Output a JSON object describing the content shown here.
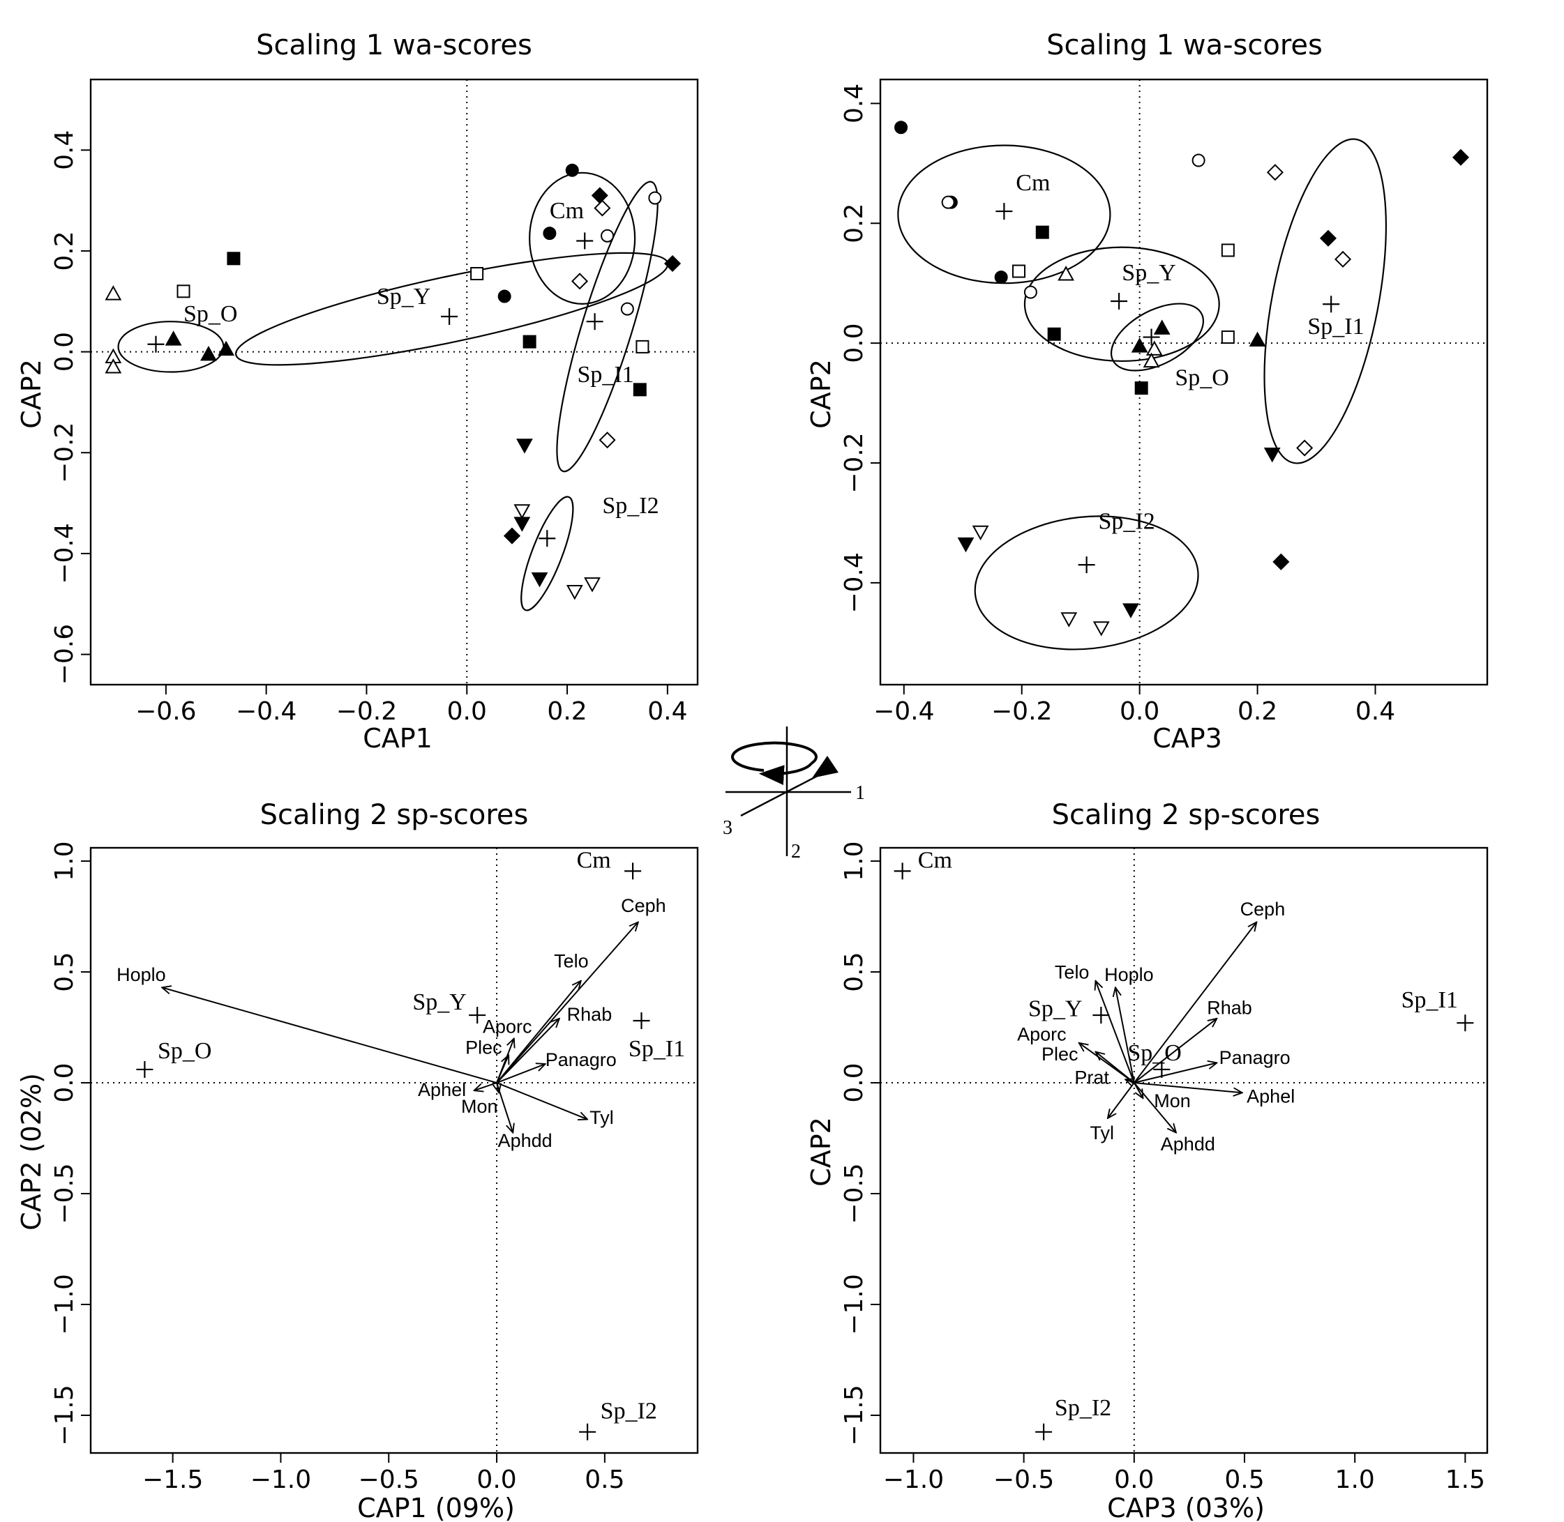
{
  "panels": [
    {
      "title": "Scaling 1 wa-scores",
      "xlabel": "CAP1",
      "ylabel": "CAP2",
      "xlim": [
        -0.75,
        0.46
      ],
      "ylim": [
        -0.66,
        0.54
      ],
      "xticks": [
        -0.6,
        -0.4,
        -0.2,
        0.0,
        0.2,
        0.4
      ],
      "xticklabels": [
        "−0.6",
        "−0.4",
        "−0.2",
        "0.0",
        "0.2",
        "0.4"
      ],
      "yticks": [
        -0.6,
        -0.4,
        -0.2,
        0.0,
        0.2,
        0.4
      ],
      "yticklabels": [
        "−0.6",
        "−0.4",
        "−0.2",
        "0.0",
        "0.2",
        "0.4"
      ]
    },
    {
      "title": "Scaling 1 wa-scores",
      "xlabel": "CAP3",
      "ylabel": "CAP2",
      "xlim": [
        -0.44,
        0.59
      ],
      "ylim": [
        -0.57,
        0.44
      ],
      "xticks": [
        -0.4,
        -0.2,
        0.0,
        0.2,
        0.4
      ],
      "xticklabels": [
        "−0.4",
        "−0.2",
        "0.0",
        "0.2",
        "0.4"
      ],
      "yticks": [
        -0.4,
        -0.2,
        0.0,
        0.2,
        0.4
      ],
      "yticklabels": [
        "−0.4",
        "−0.2",
        "0.0",
        "0.2",
        "0.4"
      ]
    },
    {
      "title": "Scaling 2 sp-scores",
      "xlabel": "CAP1 (09%)",
      "ylabel": "CAP2 (02%)",
      "xlim": [
        -1.88,
        0.93
      ],
      "ylim": [
        -1.67,
        1.06
      ],
      "xticks": [
        -1.5,
        -1.0,
        -0.5,
        0.0,
        0.5
      ],
      "xticklabels": [
        "−1.5",
        "−1.0",
        "−0.5",
        "0.0",
        "0.5"
      ],
      "yticks": [
        -1.5,
        -1.0,
        -0.5,
        0.0,
        0.5,
        1.0
      ],
      "yticklabels": [
        "−1.5",
        "−1.0",
        "−0.5",
        "0.0",
        "0.5",
        "1.0"
      ]
    },
    {
      "title": "Scaling 2 sp-scores",
      "xlabel": "CAP3 (03%)",
      "ylabel": "CAP2",
      "xlim": [
        -1.15,
        1.6
      ],
      "ylim": [
        -1.67,
        1.06
      ],
      "xticks": [
        -1.0,
        -0.5,
        0.0,
        0.5,
        1.0,
        1.5
      ],
      "xticklabels": [
        "−1.0",
        "−0.5",
        "0.0",
        "0.5",
        "1.0",
        "1.5"
      ],
      "yticks": [
        -1.5,
        -1.0,
        -0.5,
        0.0,
        0.5,
        1.0
      ],
      "yticklabels": [
        "−1.5",
        "−1.0",
        "−0.5",
        "0.0",
        "0.5",
        "1.0"
      ]
    }
  ],
  "rotation_icon": {
    "labels": [
      "1",
      "2",
      "3"
    ]
  },
  "chart_data": [
    {
      "type": "scatter",
      "title": "Scaling 1 wa-scores",
      "xlabel": "CAP1",
      "ylabel": "CAP2",
      "xlim": [
        -0.75,
        0.46
      ],
      "ylim": [
        -0.66,
        0.54
      ],
      "grid": false,
      "points": [
        {
          "s": "circle-filled",
          "x": 0.21,
          "y": 0.36
        },
        {
          "s": "circle-filled",
          "x": 0.165,
          "y": 0.235
        },
        {
          "s": "circle-filled",
          "x": 0.075,
          "y": 0.11
        },
        {
          "s": "circle-open",
          "x": 0.375,
          "y": 0.305
        },
        {
          "s": "circle-open",
          "x": 0.28,
          "y": 0.23
        },
        {
          "s": "circle-open",
          "x": 0.32,
          "y": 0.085
        },
        {
          "s": "diamond-filled",
          "x": 0.265,
          "y": 0.31
        },
        {
          "s": "diamond-filled",
          "x": 0.41,
          "y": 0.175
        },
        {
          "s": "diamond-filled",
          "x": 0.09,
          "y": -0.365
        },
        {
          "s": "diamond-open",
          "x": 0.27,
          "y": 0.285
        },
        {
          "s": "diamond-open",
          "x": 0.225,
          "y": 0.14
        },
        {
          "s": "diamond-open",
          "x": 0.28,
          "y": -0.175
        },
        {
          "s": "square-filled",
          "x": -0.465,
          "y": 0.185
        },
        {
          "s": "square-filled",
          "x": 0.125,
          "y": 0.02
        },
        {
          "s": "square-filled",
          "x": 0.345,
          "y": -0.075
        },
        {
          "s": "square-open",
          "x": -0.565,
          "y": 0.12
        },
        {
          "s": "square-open",
          "x": 0.02,
          "y": 0.155
        },
        {
          "s": "square-open",
          "x": 0.35,
          "y": 0.01
        },
        {
          "s": "triangle-up-open",
          "x": -0.705,
          "y": 0.115
        },
        {
          "s": "triangle-up-open",
          "x": -0.705,
          "y": -0.01
        },
        {
          "s": "triangle-up-open",
          "x": -0.705,
          "y": -0.03
        },
        {
          "s": "triangle-up-filled",
          "x": -0.585,
          "y": 0.025
        },
        {
          "s": "triangle-up-filled",
          "x": -0.515,
          "y": -0.005
        },
        {
          "s": "triangle-up-filled",
          "x": -0.48,
          "y": 0.005
        },
        {
          "s": "triangle-down-filled",
          "x": 0.115,
          "y": -0.185
        },
        {
          "s": "triangle-down-filled",
          "x": 0.11,
          "y": -0.34
        },
        {
          "s": "triangle-down-filled",
          "x": 0.145,
          "y": -0.45
        },
        {
          "s": "triangle-down-open",
          "x": 0.11,
          "y": -0.315
        },
        {
          "s": "triangle-down-open",
          "x": 0.215,
          "y": -0.475
        },
        {
          "s": "triangle-down-open",
          "x": 0.25,
          "y": -0.46
        }
      ],
      "groups": [
        {
          "label": "Cm",
          "cx": 0.235,
          "cy": 0.22,
          "lx": 0.165,
          "ly": 0.265,
          "ell": {
            "cx": 0.23,
            "cy": 0.225,
            "rx": 0.105,
            "ry": 0.13,
            "angle": 0
          }
        },
        {
          "label": "Sp_Y",
          "cx": -0.035,
          "cy": 0.07,
          "lx": -0.18,
          "ly": 0.095,
          "ell": {
            "cx": -0.03,
            "cy": 0.085,
            "rx": 0.44,
            "ry": 0.065,
            "angle": -12
          }
        },
        {
          "label": "Sp_O",
          "cx": -0.62,
          "cy": 0.015,
          "lx": -0.565,
          "ly": 0.06,
          "ell": {
            "cx": -0.59,
            "cy": 0.01,
            "rx": 0.105,
            "ry": 0.05,
            "angle": 0
          }
        },
        {
          "label": "Sp_I1",
          "cx": 0.255,
          "cy": 0.06,
          "lx": 0.22,
          "ly": -0.06,
          "ell": {
            "cx": 0.28,
            "cy": 0.05,
            "rx": 0.05,
            "ry": 0.3,
            "angle": 17
          }
        },
        {
          "label": "Sp_I2",
          "cx": 0.16,
          "cy": -0.37,
          "lx": 0.27,
          "ly": -0.32,
          "ell": {
            "cx": 0.16,
            "cy": -0.4,
            "rx": 0.03,
            "ry": 0.12,
            "angle": 21
          }
        }
      ]
    },
    {
      "type": "scatter",
      "title": "Scaling 1 wa-scores",
      "xlabel": "CAP3",
      "ylabel": "CAP2",
      "xlim": [
        -0.44,
        0.59
      ],
      "ylim": [
        -0.57,
        0.44
      ],
      "grid": false,
      "points": [
        {
          "s": "circle-filled",
          "x": -0.405,
          "y": 0.36
        },
        {
          "s": "circle-filled",
          "x": -0.32,
          "y": 0.235
        },
        {
          "s": "circle-filled",
          "x": -0.235,
          "y": 0.11
        },
        {
          "s": "circle-open",
          "x": -0.325,
          "y": 0.235
        },
        {
          "s": "circle-open",
          "x": -0.185,
          "y": 0.085
        },
        {
          "s": "circle-open",
          "x": 0.1,
          "y": 0.305
        },
        {
          "s": "diamond-filled",
          "x": 0.545,
          "y": 0.31
        },
        {
          "s": "diamond-filled",
          "x": 0.32,
          "y": 0.175
        },
        {
          "s": "diamond-filled",
          "x": 0.24,
          "y": -0.365
        },
        {
          "s": "diamond-open",
          "x": 0.23,
          "y": 0.285
        },
        {
          "s": "diamond-open",
          "x": 0.345,
          "y": 0.14
        },
        {
          "s": "diamond-open",
          "x": 0.28,
          "y": -0.175
        },
        {
          "s": "square-filled",
          "x": -0.165,
          "y": 0.185
        },
        {
          "s": "square-filled",
          "x": -0.145,
          "y": 0.015
        },
        {
          "s": "square-filled",
          "x": 0.003,
          "y": -0.075
        },
        {
          "s": "square-open",
          "x": -0.205,
          "y": 0.12
        },
        {
          "s": "square-open",
          "x": 0.15,
          "y": 0.155
        },
        {
          "s": "square-open",
          "x": 0.15,
          "y": 0.01
        },
        {
          "s": "triangle-up-open",
          "x": -0.125,
          "y": 0.115
        },
        {
          "s": "triangle-up-open",
          "x": 0.025,
          "y": -0.01
        },
        {
          "s": "triangle-up-open",
          "x": 0.02,
          "y": -0.03
        },
        {
          "s": "triangle-up-filled",
          "x": 0.038,
          "y": 0.025
        },
        {
          "s": "triangle-up-filled",
          "x": 0.0,
          "y": -0.005
        },
        {
          "s": "triangle-up-filled",
          "x": 0.2,
          "y": 0.005
        },
        {
          "s": "triangle-down-filled",
          "x": 0.225,
          "y": -0.185
        },
        {
          "s": "triangle-down-filled",
          "x": -0.295,
          "y": -0.335
        },
        {
          "s": "triangle-down-filled",
          "x": -0.015,
          "y": -0.445
        },
        {
          "s": "triangle-down-open",
          "x": -0.27,
          "y": -0.315
        },
        {
          "s": "triangle-down-open",
          "x": -0.12,
          "y": -0.46
        },
        {
          "s": "triangle-down-open",
          "x": -0.065,
          "y": -0.475
        }
      ],
      "groups": [
        {
          "label": "Cm",
          "cx": -0.23,
          "cy": 0.22,
          "lx": -0.21,
          "ly": 0.255,
          "ell": {
            "cx": -0.23,
            "cy": 0.215,
            "rx": 0.18,
            "ry": 0.115,
            "angle": 0
          }
        },
        {
          "label": "Sp_Y",
          "cx": -0.035,
          "cy": 0.07,
          "lx": -0.03,
          "ly": 0.105,
          "ell": {
            "cx": -0.03,
            "cy": 0.065,
            "rx": 0.165,
            "ry": 0.095,
            "angle": 0
          }
        },
        {
          "label": "Sp_O",
          "cx": 0.02,
          "cy": 0.01,
          "lx": 0.06,
          "ly": -0.07,
          "ell": {
            "cx": 0.03,
            "cy": 0.01,
            "rx": 0.085,
            "ry": 0.045,
            "angle": -28
          }
        },
        {
          "label": "Sp_I1",
          "cx": 0.325,
          "cy": 0.065,
          "lx": 0.285,
          "ly": 0.015,
          "ell": {
            "cx": 0.315,
            "cy": 0.07,
            "rx": 0.09,
            "ry": 0.275,
            "angle": 11
          }
        },
        {
          "label": "Sp_I2",
          "cx": -0.09,
          "cy": -0.37,
          "lx": -0.07,
          "ly": -0.31,
          "ell": {
            "cx": -0.09,
            "cy": -0.4,
            "rx": 0.19,
            "ry": 0.11,
            "angle": -6
          }
        }
      ]
    },
    {
      "type": "biplot",
      "title": "Scaling 2 sp-scores",
      "xlabel": "CAP1 (09%)",
      "ylabel": "CAP2 (02%)",
      "xlim": [
        -1.88,
        0.93
      ],
      "ylim": [
        -1.67,
        1.06
      ],
      "grid": false,
      "centroids": [
        {
          "label": "Cm",
          "x": 0.63,
          "y": 0.955,
          "lx": 0.37,
          "ly": 0.97
        },
        {
          "label": "Sp_Y",
          "x": -0.09,
          "y": 0.305,
          "lx": -0.39,
          "ly": 0.33
        },
        {
          "label": "Sp_O",
          "x": -1.63,
          "y": 0.06,
          "lx": -1.57,
          "ly": 0.11
        },
        {
          "label": "Sp_I1",
          "x": 0.67,
          "y": 0.28,
          "lx": 0.61,
          "ly": 0.12
        },
        {
          "label": "Sp_I2",
          "x": 0.42,
          "y": -1.575,
          "lx": 0.48,
          "ly": -1.515
        }
      ],
      "species": [
        {
          "name": "Ceph",
          "x": 0.655,
          "y": 0.725,
          "lx": 0.575,
          "ly": 0.77
        },
        {
          "name": "Telo",
          "x": 0.39,
          "y": 0.46,
          "lx": 0.265,
          "ly": 0.52
        },
        {
          "name": "Rhab",
          "x": 0.29,
          "y": 0.29,
          "lx": 0.325,
          "ly": 0.28
        },
        {
          "name": "Hoplo",
          "x": -1.55,
          "y": 0.43,
          "lx": -1.76,
          "ly": 0.46
        },
        {
          "name": "Aporc",
          "x": 0.08,
          "y": 0.2,
          "lx": -0.065,
          "ly": 0.225
        },
        {
          "name": "Plec",
          "x": 0.055,
          "y": 0.125,
          "lx": -0.145,
          "ly": 0.13
        },
        {
          "name": "Panagro",
          "x": 0.225,
          "y": 0.085,
          "lx": 0.225,
          "ly": 0.075
        },
        {
          "name": "Aphel",
          "x": -0.105,
          "y": -0.035,
          "lx": -0.365,
          "ly": -0.06
        },
        {
          "name": "Mon",
          "x": 0.01,
          "y": -0.045,
          "lx": -0.165,
          "ly": -0.135
        },
        {
          "name": "Aphdd",
          "x": 0.075,
          "y": -0.225,
          "lx": 0.005,
          "ly": -0.29
        },
        {
          "name": "Tyl",
          "x": 0.42,
          "y": -0.165,
          "lx": 0.43,
          "ly": -0.185
        }
      ]
    },
    {
      "type": "biplot",
      "title": "Scaling 2 sp-scores",
      "xlabel": "CAP3 (03%)",
      "ylabel": "CAP2",
      "xlim": [
        -1.15,
        1.6
      ],
      "ylim": [
        -1.67,
        1.06
      ],
      "grid": false,
      "centroids": [
        {
          "label": "Cm",
          "x": -1.05,
          "y": 0.955,
          "lx": -0.98,
          "ly": 0.97
        },
        {
          "label": "Sp_Y",
          "x": -0.15,
          "y": 0.305,
          "lx": -0.48,
          "ly": 0.3
        },
        {
          "label": "Sp_O",
          "x": 0.125,
          "y": 0.06,
          "lx": -0.03,
          "ly": 0.1
        },
        {
          "label": "Sp_I1",
          "x": 1.5,
          "y": 0.27,
          "lx": 1.21,
          "ly": 0.34
        },
        {
          "label": "Sp_I2",
          "x": -0.41,
          "y": -1.575,
          "lx": -0.36,
          "ly": -1.5
        }
      ],
      "species": [
        {
          "name": "Ceph",
          "x": 0.555,
          "y": 0.725,
          "lx": 0.48,
          "ly": 0.755
        },
        {
          "name": "Telo",
          "x": -0.175,
          "y": 0.46,
          "lx": -0.36,
          "ly": 0.47
        },
        {
          "name": "Hoplo",
          "x": -0.085,
          "y": 0.43,
          "lx": -0.135,
          "ly": 0.46
        },
        {
          "name": "Rhab",
          "x": 0.375,
          "y": 0.29,
          "lx": 0.33,
          "ly": 0.31
        },
        {
          "name": "Aporc",
          "x": -0.175,
          "y": 0.14,
          "lx": -0.53,
          "ly": 0.19
        },
        {
          "name": "Plec",
          "x": -0.25,
          "y": 0.18,
          "lx": -0.42,
          "ly": 0.1
        },
        {
          "name": "Prat",
          "x": -0.04,
          "y": 0.015,
          "lx": -0.27,
          "ly": -0.005
        },
        {
          "name": "Panagro",
          "x": 0.375,
          "y": 0.09,
          "lx": 0.385,
          "ly": 0.085
        },
        {
          "name": "Aphel",
          "x": 0.49,
          "y": -0.045,
          "lx": 0.51,
          "ly": -0.09
        },
        {
          "name": "Mon",
          "x": 0.04,
          "y": -0.07,
          "lx": 0.09,
          "ly": -0.11
        },
        {
          "name": "Tyl",
          "x": -0.12,
          "y": -0.16,
          "lx": -0.2,
          "ly": -0.255
        },
        {
          "name": "Aphdd",
          "x": 0.19,
          "y": -0.225,
          "lx": 0.12,
          "ly": -0.305
        }
      ]
    }
  ]
}
